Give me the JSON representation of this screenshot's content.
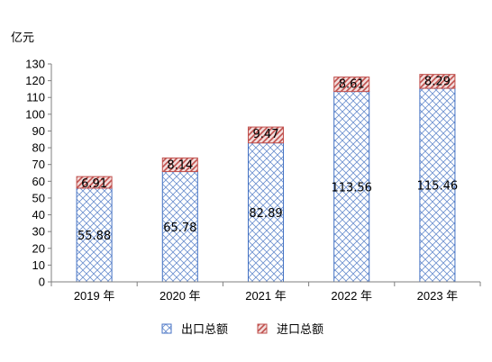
{
  "chart_data": {
    "type": "bar",
    "stacked": true,
    "unit_label": "亿元",
    "categories": [
      "2019 年",
      "2020 年",
      "2021 年",
      "2022 年",
      "2023 年"
    ],
    "series": [
      {
        "name": "出口总额",
        "values": [
          55.88,
          65.78,
          82.89,
          113.56,
          115.46
        ],
        "color": "#4472c4",
        "fill": "crosshatch"
      },
      {
        "name": "进口总额",
        "values": [
          6.91,
          8.14,
          9.47,
          8.61,
          8.29
        ],
        "color": "#c0504d",
        "fill": "diagonal"
      }
    ],
    "value_labels": [
      [
        "55.88",
        "65.78",
        "82.89",
        "113.56",
        "115.46"
      ],
      [
        "6.91",
        "8.14",
        "9.47",
        "8.61",
        "8.29"
      ]
    ],
    "ylim": [
      0,
      130
    ],
    "yticks": [
      "0",
      "10",
      "20",
      "30",
      "40",
      "50",
      "60",
      "70",
      "80",
      "90",
      "100",
      "110",
      "120",
      "130"
    ],
    "grid": false,
    "legend_position": "bottom"
  }
}
